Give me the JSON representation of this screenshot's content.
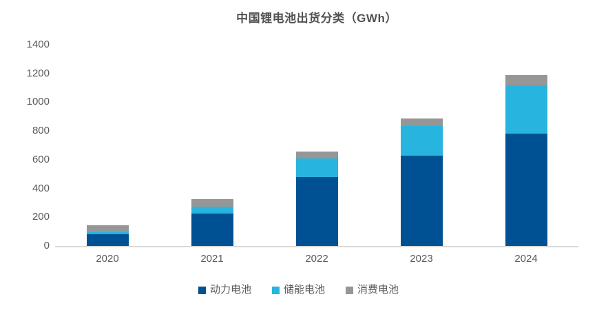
{
  "chart_data": {
    "type": "bar",
    "stacked": true,
    "title": "中国锂电池出货分类（GWh）",
    "categories": [
      "2020",
      "2021",
      "2022",
      "2023",
      "2024"
    ],
    "series": [
      {
        "name": "动力电池",
        "color": "#005193",
        "values": [
          80,
          226,
          480,
          630,
          780
        ]
      },
      {
        "name": "储能电池",
        "color": "#27B5DF",
        "values": [
          16,
          48,
          130,
          206,
          335
        ]
      },
      {
        "name": "消费电池",
        "color": "#969696",
        "values": [
          47,
          53,
          45,
          49,
          75
        ]
      }
    ],
    "totals": [
      143,
      327,
      655,
      885,
      1190
    ],
    "ylim": [
      0,
      1400
    ],
    "yticks": [
      0,
      200,
      400,
      600,
      800,
      1000,
      1200,
      1400
    ],
    "grid": false,
    "legend_position": "bottom",
    "axis_line_color": "#D9D9D9",
    "text_color": "#595959"
  }
}
